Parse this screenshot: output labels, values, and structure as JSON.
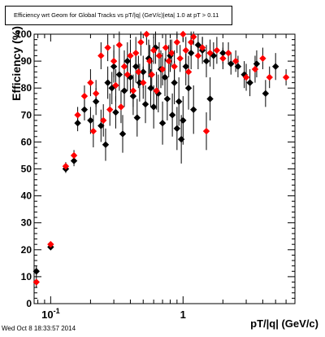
{
  "chart_data": {
    "type": "scatter",
    "title": "Efficiency wrt Geom for Global Tracks vs pT/|q| (GeV/c)|eta| 1.0 at pT > 0.11",
    "xlabel": "pT/|q| (GeV/c)",
    "ylabel": "Efficiency (%)",
    "xscale": "log",
    "xlim": [
      0.075,
      7.0
    ],
    "ylim": [
      0,
      100
    ],
    "yticks": [
      0,
      10,
      20,
      30,
      40,
      50,
      60,
      70,
      80,
      90,
      100
    ],
    "xtick_labels": [
      {
        "value": 0.1,
        "base": "10",
        "exp": "-1"
      },
      {
        "value": 1,
        "label": "1"
      }
    ],
    "grid": false,
    "series": [
      {
        "color": "#000000",
        "points": [
          [
            0.078,
            12,
            2
          ],
          [
            0.1,
            21,
            1
          ],
          [
            0.13,
            50,
            1.5
          ],
          [
            0.15,
            53,
            2
          ],
          [
            0.16,
            67,
            3
          ],
          [
            0.18,
            72,
            4
          ],
          [
            0.2,
            68,
            5
          ],
          [
            0.22,
            75,
            5
          ],
          [
            0.24,
            66,
            6
          ],
          [
            0.26,
            59,
            6
          ],
          [
            0.27,
            82,
            6
          ],
          [
            0.29,
            80,
            6
          ],
          [
            0.3,
            88,
            6
          ],
          [
            0.31,
            71,
            6
          ],
          [
            0.33,
            85,
            6
          ],
          [
            0.35,
            63,
            7
          ],
          [
            0.36,
            79,
            6
          ],
          [
            0.38,
            90,
            7
          ],
          [
            0.4,
            84,
            6
          ],
          [
            0.42,
            77,
            7
          ],
          [
            0.44,
            88,
            6
          ],
          [
            0.45,
            69,
            7
          ],
          [
            0.47,
            82,
            7
          ],
          [
            0.5,
            86,
            6
          ],
          [
            0.52,
            74,
            7
          ],
          [
            0.55,
            91,
            7
          ],
          [
            0.57,
            80,
            7
          ],
          [
            0.6,
            73,
            8
          ],
          [
            0.62,
            95,
            6
          ],
          [
            0.65,
            78,
            7
          ],
          [
            0.68,
            87,
            7
          ],
          [
            0.7,
            67,
            8
          ],
          [
            0.73,
            84,
            7
          ],
          [
            0.76,
            76,
            8
          ],
          [
            0.8,
            92,
            6
          ],
          [
            0.83,
            70,
            8
          ],
          [
            0.86,
            82,
            8
          ],
          [
            0.9,
            65,
            8
          ],
          [
            0.93,
            75,
            9
          ],
          [
            0.97,
            61,
            9
          ],
          [
            1.0,
            68,
            9
          ],
          [
            1.05,
            88,
            7
          ],
          [
            1.1,
            80,
            8
          ],
          [
            1.15,
            93,
            6
          ],
          [
            1.2,
            72,
            9
          ],
          [
            1.3,
            96,
            4
          ],
          [
            1.4,
            94,
            5
          ],
          [
            1.5,
            90,
            6
          ],
          [
            1.6,
            76,
            8
          ],
          [
            1.7,
            92,
            5
          ],
          [
            2.0,
            93,
            4
          ],
          [
            2.3,
            89,
            4
          ],
          [
            2.6,
            88,
            4
          ],
          [
            2.9,
            85,
            5
          ],
          [
            3.2,
            82,
            5
          ],
          [
            3.6,
            89,
            5
          ],
          [
            4.2,
            78,
            5
          ],
          [
            5.0,
            88,
            5
          ]
        ]
      },
      {
        "color": "#ff0000",
        "points": [
          [
            0.078,
            8,
            2
          ],
          [
            0.1,
            22,
            1
          ],
          [
            0.13,
            51,
            1.5
          ],
          [
            0.15,
            55,
            2
          ],
          [
            0.16,
            70,
            3
          ],
          [
            0.18,
            77,
            4
          ],
          [
            0.2,
            82,
            5
          ],
          [
            0.21,
            64,
            6
          ],
          [
            0.22,
            78,
            5
          ],
          [
            0.24,
            92,
            5
          ],
          [
            0.25,
            68,
            6
          ],
          [
            0.27,
            95,
            5
          ],
          [
            0.28,
            72,
            6
          ],
          [
            0.3,
            90,
            6
          ],
          [
            0.31,
            81,
            6
          ],
          [
            0.33,
            96,
            5
          ],
          [
            0.34,
            73,
            6
          ],
          [
            0.36,
            88,
            6
          ],
          [
            0.38,
            85,
            6
          ],
          [
            0.4,
            92,
            6
          ],
          [
            0.42,
            79,
            6
          ],
          [
            0.44,
            93,
            6
          ],
          [
            0.46,
            86,
            6
          ],
          [
            0.48,
            97,
            5
          ],
          [
            0.5,
            82,
            6
          ],
          [
            0.53,
            100,
            4
          ],
          [
            0.56,
            90,
            6
          ],
          [
            0.58,
            85,
            6
          ],
          [
            0.6,
            94,
            5
          ],
          [
            0.63,
            79,
            7
          ],
          [
            0.66,
            92,
            5
          ],
          [
            0.7,
            87,
            6
          ],
          [
            0.74,
            95,
            5
          ],
          [
            0.78,
            90,
            6
          ],
          [
            0.82,
            93,
            5
          ],
          [
            0.86,
            88,
            6
          ],
          [
            0.9,
            97,
            4
          ],
          [
            0.95,
            91,
            5
          ],
          [
            1.0,
            100,
            3
          ],
          [
            1.05,
            94,
            5
          ],
          [
            1.1,
            86,
            6
          ],
          [
            1.15,
            97,
            4
          ],
          [
            1.2,
            99,
            3
          ],
          [
            1.3,
            92,
            5
          ],
          [
            1.4,
            95,
            4
          ],
          [
            1.5,
            64,
            7
          ],
          [
            1.6,
            93,
            5
          ],
          [
            1.8,
            94,
            5
          ],
          [
            2.0,
            91,
            4
          ],
          [
            2.2,
            93,
            4
          ],
          [
            2.5,
            90,
            4
          ],
          [
            3.0,
            84,
            5
          ],
          [
            3.5,
            87,
            5
          ],
          [
            4.0,
            91,
            4
          ],
          [
            4.5,
            84,
            4
          ],
          [
            6.0,
            84,
            3
          ]
        ]
      }
    ]
  },
  "labels": {
    "title": "Efficiency wrt Geom for Global Tracks vs pT/|q| (GeV/c)|eta| 1.0 at pT > 0.11",
    "ylabel": "Efficiency (%)",
    "xlabel": "pT/|q| (GeV/c)",
    "timestamp": "Wed Oct  8 18:33:57 2014"
  }
}
